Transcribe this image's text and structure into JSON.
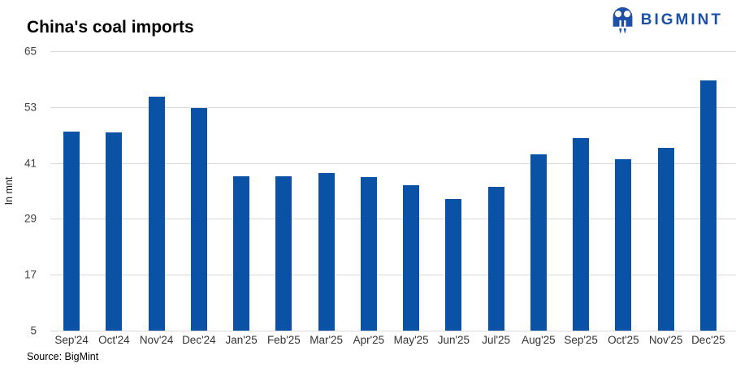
{
  "header": {
    "title": "China's coal imports",
    "logo_text": "BIGMINT"
  },
  "source": "Source: BigMint",
  "colors": {
    "bar": "#0a52a5",
    "logo_blue": "#1d50a8",
    "grid": "#d9d9d9",
    "axis_text": "#404040"
  },
  "chart_data": {
    "type": "bar",
    "title": "China's coal imports",
    "xlabel": "",
    "ylabel": "In mnt",
    "ylim": [
      5,
      65
    ],
    "yticks": [
      65,
      53,
      41,
      29,
      17,
      5
    ],
    "grid": "horizontal",
    "legend_position": "none",
    "bar_color": "#0a52a5",
    "categories": [
      "Sep'24",
      "Oct'24",
      "Nov'24",
      "Dec'24",
      "Jan'25",
      "Feb'25",
      "Mar'25",
      "Apr'25",
      "May'25",
      "Jun'25",
      "Jul'25",
      "Aug'25",
      "Sep'25",
      "Oct'25",
      "Nov'25",
      "Dec'25"
    ],
    "values": [
      47.8,
      47.5,
      55.2,
      52.8,
      38.1,
      38.2,
      38.8,
      38.0,
      36.2,
      33.2,
      35.8,
      42.9,
      46.3,
      41.8,
      44.2,
      58.8
    ]
  }
}
